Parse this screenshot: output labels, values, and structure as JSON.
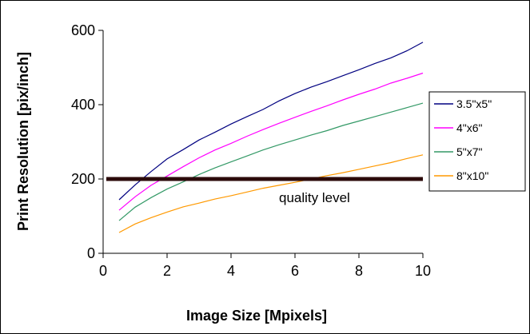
{
  "chart_data": {
    "type": "line",
    "xlabel": "Image Size [Mpixels]",
    "ylabel": "Print Resolution [pix/inch]",
    "xlim": [
      0,
      10
    ],
    "ylim": [
      0,
      600
    ],
    "xticks": [
      0,
      2,
      4,
      6,
      8,
      10
    ],
    "yticks": [
      0,
      200,
      400,
      600
    ],
    "xtick_labels": [
      "0",
      "2",
      "4",
      "6",
      "8",
      "10"
    ],
    "ytick_labels": [
      "0",
      "200",
      "400",
      "600"
    ],
    "grid": false,
    "legend_position": "right",
    "x": [
      0.5,
      1,
      1.5,
      2,
      2.5,
      3,
      3.5,
      4,
      4.5,
      5,
      5.5,
      6,
      6.5,
      7,
      7.5,
      8,
      8.5,
      9,
      9.5,
      10
    ],
    "series": [
      {
        "name": "3.5\"x5\"",
        "color": "#000080",
        "values": [
          144,
          184,
          220,
          254,
          279,
          305,
          326,
          348,
          368,
          387,
          410,
          430,
          447,
          462,
          478,
          494,
          511,
          526,
          545,
          568
        ]
      },
      {
        "name": "4\"x6\"",
        "color": "#ff00ff",
        "values": [
          116,
          152,
          183,
          208,
          233,
          257,
          278,
          296,
          315,
          333,
          350,
          366,
          382,
          397,
          413,
          428,
          442,
          458,
          471,
          485
        ]
      },
      {
        "name": "5\"x7\"",
        "color": "#339966",
        "values": [
          88,
          124,
          150,
          173,
          192,
          212,
          230,
          246,
          262,
          278,
          292,
          305,
          318,
          330,
          344,
          356,
          368,
          380,
          392,
          404
        ]
      },
      {
        "name": "8\"x10\"",
        "color": "#ff9900",
        "values": [
          56,
          79,
          96,
          111,
          125,
          135,
          146,
          155,
          165,
          175,
          183,
          191,
          200,
          209,
          217,
          226,
          235,
          244,
          255,
          265
        ]
      }
    ],
    "reference_line": {
      "y": 200,
      "x_range": [
        0.1,
        10
      ],
      "label": "quality level",
      "color": "#2b0a0a"
    }
  }
}
